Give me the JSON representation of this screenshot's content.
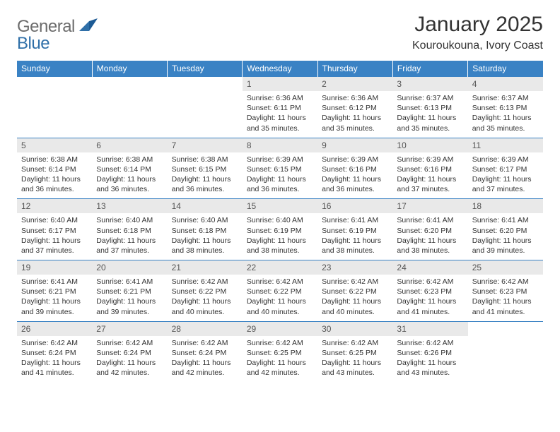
{
  "brand": {
    "part1": "General",
    "part2": "Blue"
  },
  "title": "January 2025",
  "location": "Kouroukouna, Ivory Coast",
  "colors": {
    "header_bg": "#3a82c4",
    "daynum_bg": "#e9e9e9",
    "border": "#3a82c4",
    "text": "#333333",
    "logo_gray": "#6c6c6c",
    "logo_blue": "#2f6fa8"
  },
  "day_headers": [
    "Sunday",
    "Monday",
    "Tuesday",
    "Wednesday",
    "Thursday",
    "Friday",
    "Saturday"
  ],
  "weeks": [
    [
      null,
      null,
      null,
      {
        "n": "1",
        "sr": "6:36 AM",
        "ss": "6:11 PM",
        "dl": "11 hours and 35 minutes."
      },
      {
        "n": "2",
        "sr": "6:36 AM",
        "ss": "6:12 PM",
        "dl": "11 hours and 35 minutes."
      },
      {
        "n": "3",
        "sr": "6:37 AM",
        "ss": "6:13 PM",
        "dl": "11 hours and 35 minutes."
      },
      {
        "n": "4",
        "sr": "6:37 AM",
        "ss": "6:13 PM",
        "dl": "11 hours and 35 minutes."
      }
    ],
    [
      {
        "n": "5",
        "sr": "6:38 AM",
        "ss": "6:14 PM",
        "dl": "11 hours and 36 minutes."
      },
      {
        "n": "6",
        "sr": "6:38 AM",
        "ss": "6:14 PM",
        "dl": "11 hours and 36 minutes."
      },
      {
        "n": "7",
        "sr": "6:38 AM",
        "ss": "6:15 PM",
        "dl": "11 hours and 36 minutes."
      },
      {
        "n": "8",
        "sr": "6:39 AM",
        "ss": "6:15 PM",
        "dl": "11 hours and 36 minutes."
      },
      {
        "n": "9",
        "sr": "6:39 AM",
        "ss": "6:16 PM",
        "dl": "11 hours and 36 minutes."
      },
      {
        "n": "10",
        "sr": "6:39 AM",
        "ss": "6:16 PM",
        "dl": "11 hours and 37 minutes."
      },
      {
        "n": "11",
        "sr": "6:39 AM",
        "ss": "6:17 PM",
        "dl": "11 hours and 37 minutes."
      }
    ],
    [
      {
        "n": "12",
        "sr": "6:40 AM",
        "ss": "6:17 PM",
        "dl": "11 hours and 37 minutes."
      },
      {
        "n": "13",
        "sr": "6:40 AM",
        "ss": "6:18 PM",
        "dl": "11 hours and 37 minutes."
      },
      {
        "n": "14",
        "sr": "6:40 AM",
        "ss": "6:18 PM",
        "dl": "11 hours and 38 minutes."
      },
      {
        "n": "15",
        "sr": "6:40 AM",
        "ss": "6:19 PM",
        "dl": "11 hours and 38 minutes."
      },
      {
        "n": "16",
        "sr": "6:41 AM",
        "ss": "6:19 PM",
        "dl": "11 hours and 38 minutes."
      },
      {
        "n": "17",
        "sr": "6:41 AM",
        "ss": "6:20 PM",
        "dl": "11 hours and 38 minutes."
      },
      {
        "n": "18",
        "sr": "6:41 AM",
        "ss": "6:20 PM",
        "dl": "11 hours and 39 minutes."
      }
    ],
    [
      {
        "n": "19",
        "sr": "6:41 AM",
        "ss": "6:21 PM",
        "dl": "11 hours and 39 minutes."
      },
      {
        "n": "20",
        "sr": "6:41 AM",
        "ss": "6:21 PM",
        "dl": "11 hours and 39 minutes."
      },
      {
        "n": "21",
        "sr": "6:42 AM",
        "ss": "6:22 PM",
        "dl": "11 hours and 40 minutes."
      },
      {
        "n": "22",
        "sr": "6:42 AM",
        "ss": "6:22 PM",
        "dl": "11 hours and 40 minutes."
      },
      {
        "n": "23",
        "sr": "6:42 AM",
        "ss": "6:22 PM",
        "dl": "11 hours and 40 minutes."
      },
      {
        "n": "24",
        "sr": "6:42 AM",
        "ss": "6:23 PM",
        "dl": "11 hours and 41 minutes."
      },
      {
        "n": "25",
        "sr": "6:42 AM",
        "ss": "6:23 PM",
        "dl": "11 hours and 41 minutes."
      }
    ],
    [
      {
        "n": "26",
        "sr": "6:42 AM",
        "ss": "6:24 PM",
        "dl": "11 hours and 41 minutes."
      },
      {
        "n": "27",
        "sr": "6:42 AM",
        "ss": "6:24 PM",
        "dl": "11 hours and 42 minutes."
      },
      {
        "n": "28",
        "sr": "6:42 AM",
        "ss": "6:24 PM",
        "dl": "11 hours and 42 minutes."
      },
      {
        "n": "29",
        "sr": "6:42 AM",
        "ss": "6:25 PM",
        "dl": "11 hours and 42 minutes."
      },
      {
        "n": "30",
        "sr": "6:42 AM",
        "ss": "6:25 PM",
        "dl": "11 hours and 43 minutes."
      },
      {
        "n": "31",
        "sr": "6:42 AM",
        "ss": "6:26 PM",
        "dl": "11 hours and 43 minutes."
      },
      null
    ]
  ],
  "labels": {
    "sunrise": "Sunrise:",
    "sunset": "Sunset:",
    "daylight": "Daylight:"
  }
}
